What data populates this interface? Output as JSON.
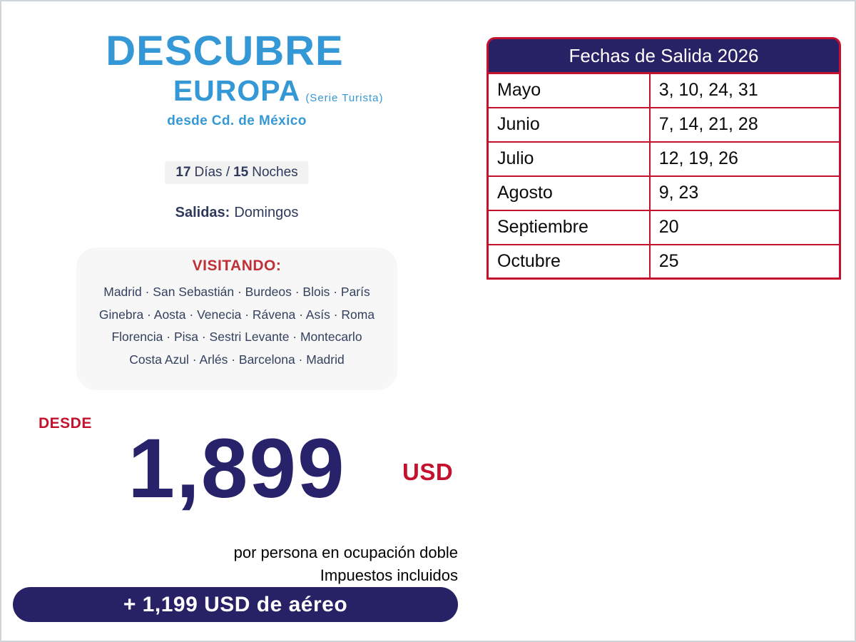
{
  "header": {
    "title_line1": "DESCUBRE",
    "title_line2": "EUROPA",
    "title_suffix": "(Serie Turista)",
    "subtitle": "desde Cd. de México"
  },
  "trip": {
    "duration_days": "17",
    "days_label": "Días /",
    "duration_nights": "15",
    "nights_label": "Noches",
    "salidas_label": "Salidas:",
    "salidas_value": "Domingos"
  },
  "visitando": {
    "heading": "VISITANDO:",
    "lines": [
      "Madrid · San Sebastián · Burdeos · Blois · París",
      "Ginebra  · Aosta · Venecia · Rávena · Asís · Roma",
      "Florencia · Pisa · Sestri Levante · Montecarlo",
      "Costa Azul · Arlés · Barcelona · Madrid"
    ]
  },
  "price": {
    "desde_label": "DESDE",
    "amount": "1,899",
    "currency": "USD",
    "note_line1": "por persona en ocupación doble",
    "note_line2": "Impuestos incluidos",
    "air_supplement": "+ 1,199 USD de aéreo"
  },
  "schedule_table": {
    "header": "Fechas de Salida 2026",
    "rows": [
      {
        "month": "Mayo",
        "dates": "3, 10, 24, 31"
      },
      {
        "month": "Junio",
        "dates": "7, 14, 21, 28"
      },
      {
        "month": "Julio",
        "dates": "12, 19, 26"
      },
      {
        "month": "Agosto",
        "dates": "9, 23"
      },
      {
        "month": "Septiembre",
        "dates": "20"
      },
      {
        "month": "Octubre",
        "dates": "25"
      }
    ]
  },
  "colors": {
    "brand_blue": "#3598d6",
    "brand_navy": "#272165",
    "accent_red": "#c4122e",
    "visitando_red": "#be3138"
  }
}
